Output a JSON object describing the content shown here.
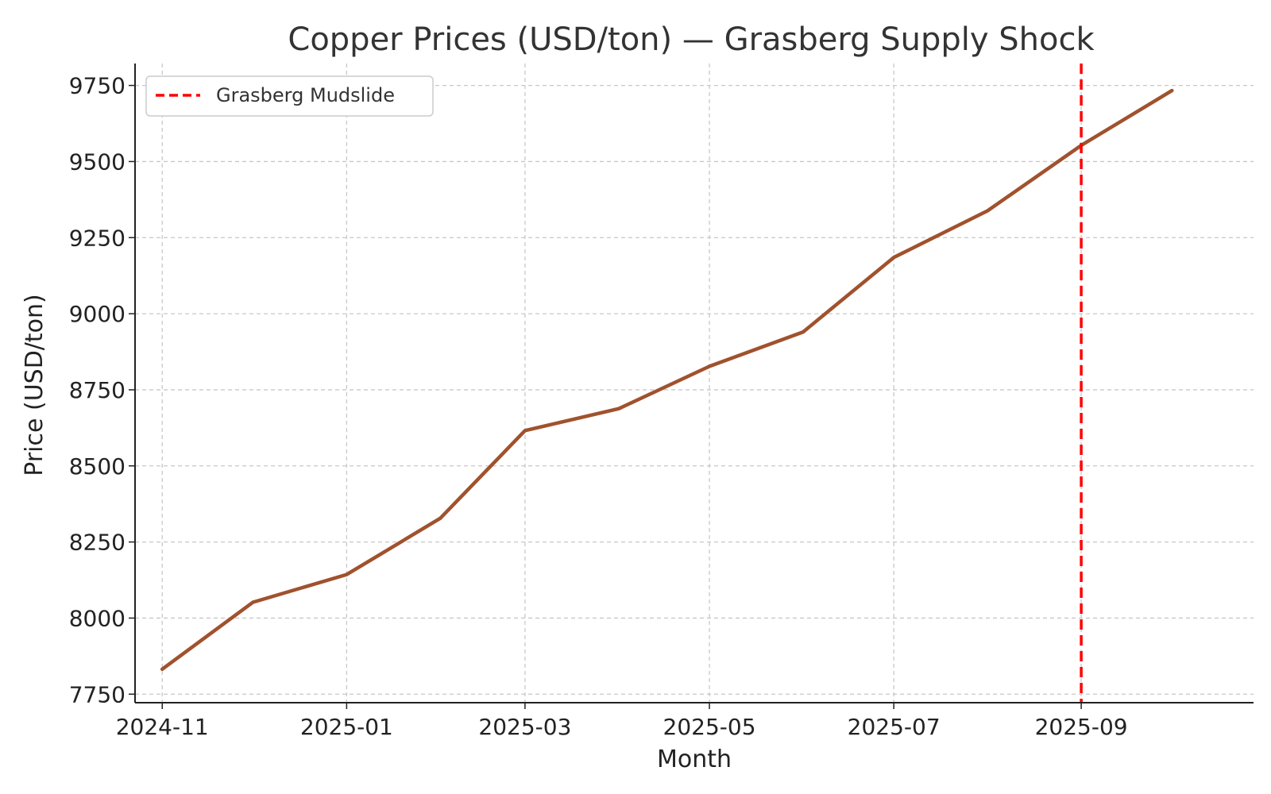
{
  "chart_data": {
    "type": "line",
    "title": "Copper Prices (USD/ton) — Grasberg Supply Shock",
    "xlabel": "Month",
    "ylabel": "Price (USD/ton)",
    "x": [
      "2024-11-01",
      "2024-12-01",
      "2025-01-01",
      "2025-02-01",
      "2025-03-01",
      "2025-04-01",
      "2025-05-01",
      "2025-06-01",
      "2025-07-01",
      "2025-08-01",
      "2025-09-01",
      "2025-10-01"
    ],
    "series": [
      {
        "values": [
          7832,
          8052,
          8143,
          8328,
          8616,
          8688,
          8827,
          8940,
          9185,
          9338,
          9553,
          9733
        ],
        "color": "#a0522d"
      }
    ],
    "xticks": [
      "2024-11",
      "2025-01",
      "2025-03",
      "2025-05",
      "2025-07",
      "2025-09"
    ],
    "yticks": [
      7750,
      8000,
      8250,
      8500,
      8750,
      9000,
      9250,
      9500,
      9750
    ],
    "xlim": [
      "2024-10-23",
      "2025-10-28"
    ],
    "ylim": [
      7722,
      9822
    ],
    "grid": true,
    "annotations": [
      {
        "type": "vline",
        "x": "2025-09-01",
        "label": "Grasberg Mudslide",
        "color": "#ff0000",
        "style": "dashed"
      }
    ],
    "legend": {
      "position": "top-left",
      "entries": [
        "Grasberg Mudslide"
      ]
    }
  }
}
